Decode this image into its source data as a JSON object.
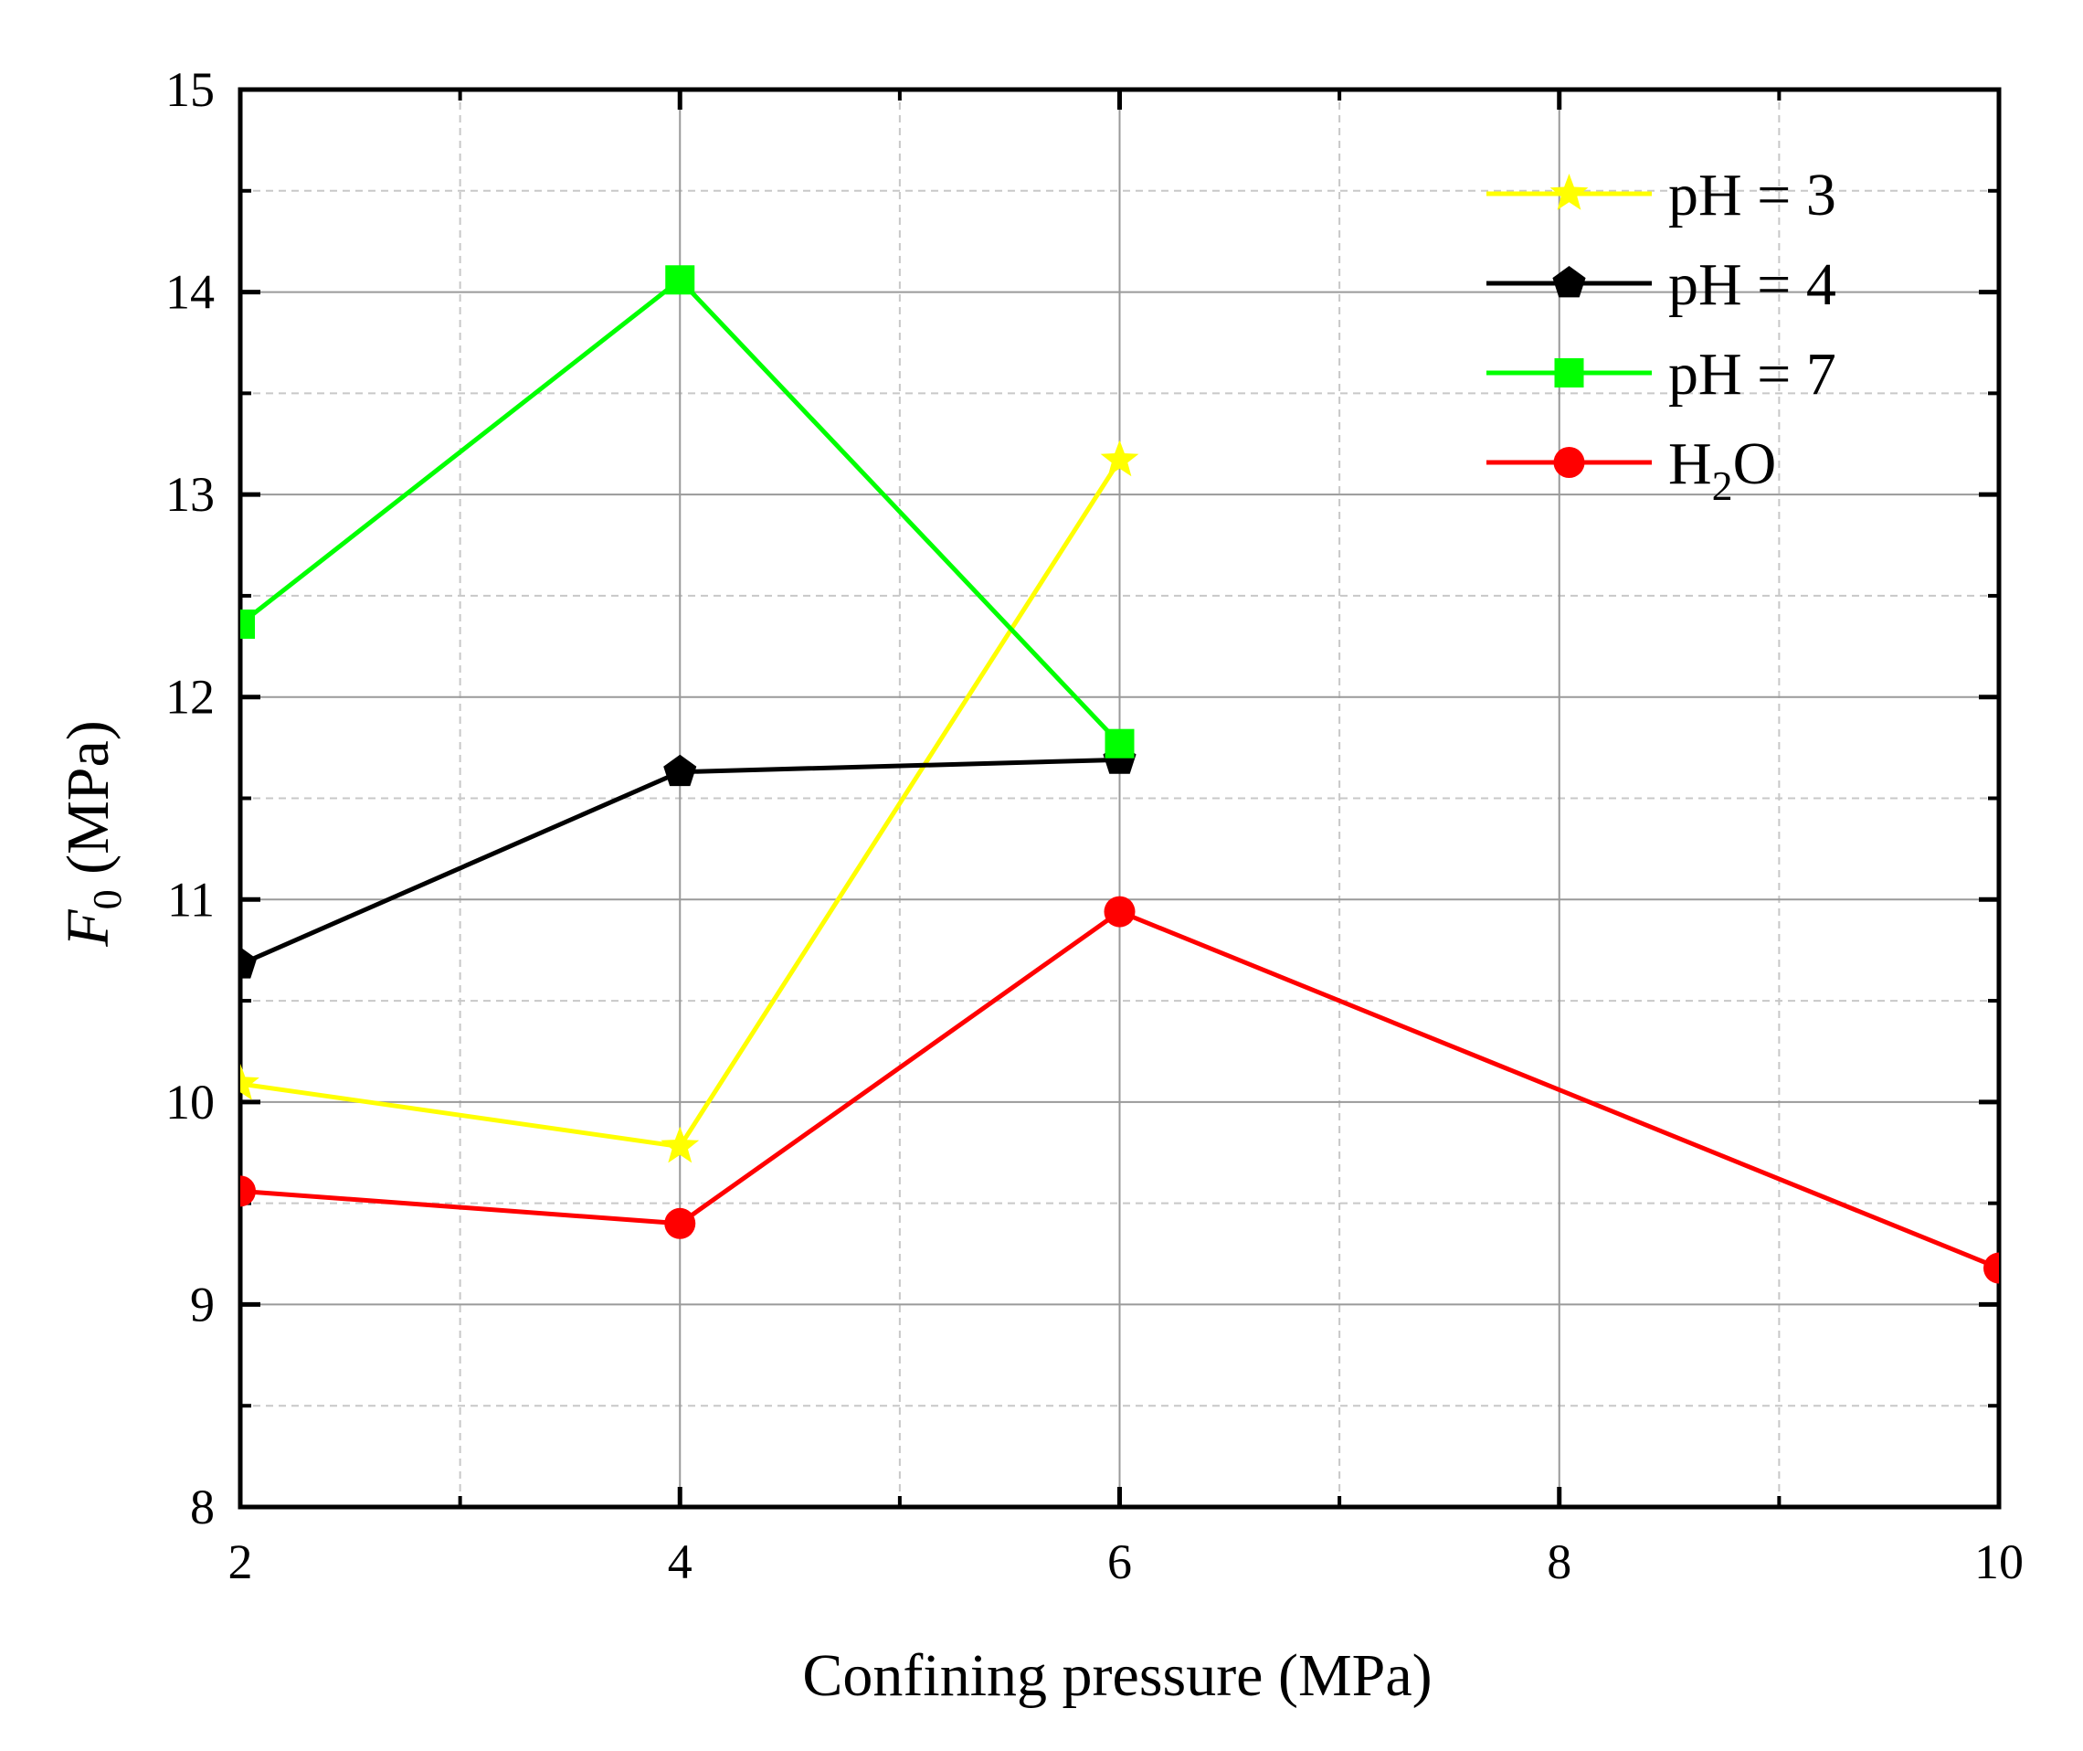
{
  "chart_data": {
    "type": "line",
    "title": "",
    "xlabel": "Confining pressure (MPa)",
    "ylabel_symbol": "F",
    "ylabel_subscript": "0",
    "ylabel_unit": " (MPa)",
    "xlim": [
      2,
      10
    ],
    "ylim": [
      8,
      15
    ],
    "xticks": [
      2,
      4,
      6,
      8,
      10
    ],
    "yticks": [
      8,
      9,
      10,
      11,
      12,
      13,
      14,
      15
    ],
    "x_minor_grid": [
      3,
      5,
      7,
      9
    ],
    "y_minor_grid": [
      8.5,
      9.5,
      10.5,
      11.5,
      12.5,
      13.5,
      14.5
    ],
    "grid": true,
    "legend_position": "top-right",
    "series": [
      {
        "name": "pH = 3",
        "marker": "star",
        "color": "#ffff00",
        "x": [
          2,
          4,
          6
        ],
        "values": [
          10.09,
          9.78,
          13.17
        ]
      },
      {
        "name": "pH = 4",
        "marker": "pentagon",
        "color": "#000000",
        "x": [
          2,
          4,
          6
        ],
        "values": [
          10.68,
          11.63,
          11.69
        ]
      },
      {
        "name": "pH = 7",
        "marker": "square",
        "color": "#00ff00",
        "x": [
          2,
          4,
          6
        ],
        "values": [
          12.36,
          14.06,
          11.77
        ]
      },
      {
        "name": "H2O",
        "marker": "circle",
        "color": "#ff0000",
        "x": [
          2,
          4,
          6,
          10
        ],
        "values": [
          9.56,
          9.4,
          10.94,
          9.18
        ]
      }
    ],
    "legend_labels": [
      {
        "text": "pH = 3"
      },
      {
        "text": "pH = 4"
      },
      {
        "text": "pH = 7"
      },
      {
        "text_main": "H",
        "text_sub": "2",
        "text_tail": "O"
      }
    ]
  }
}
